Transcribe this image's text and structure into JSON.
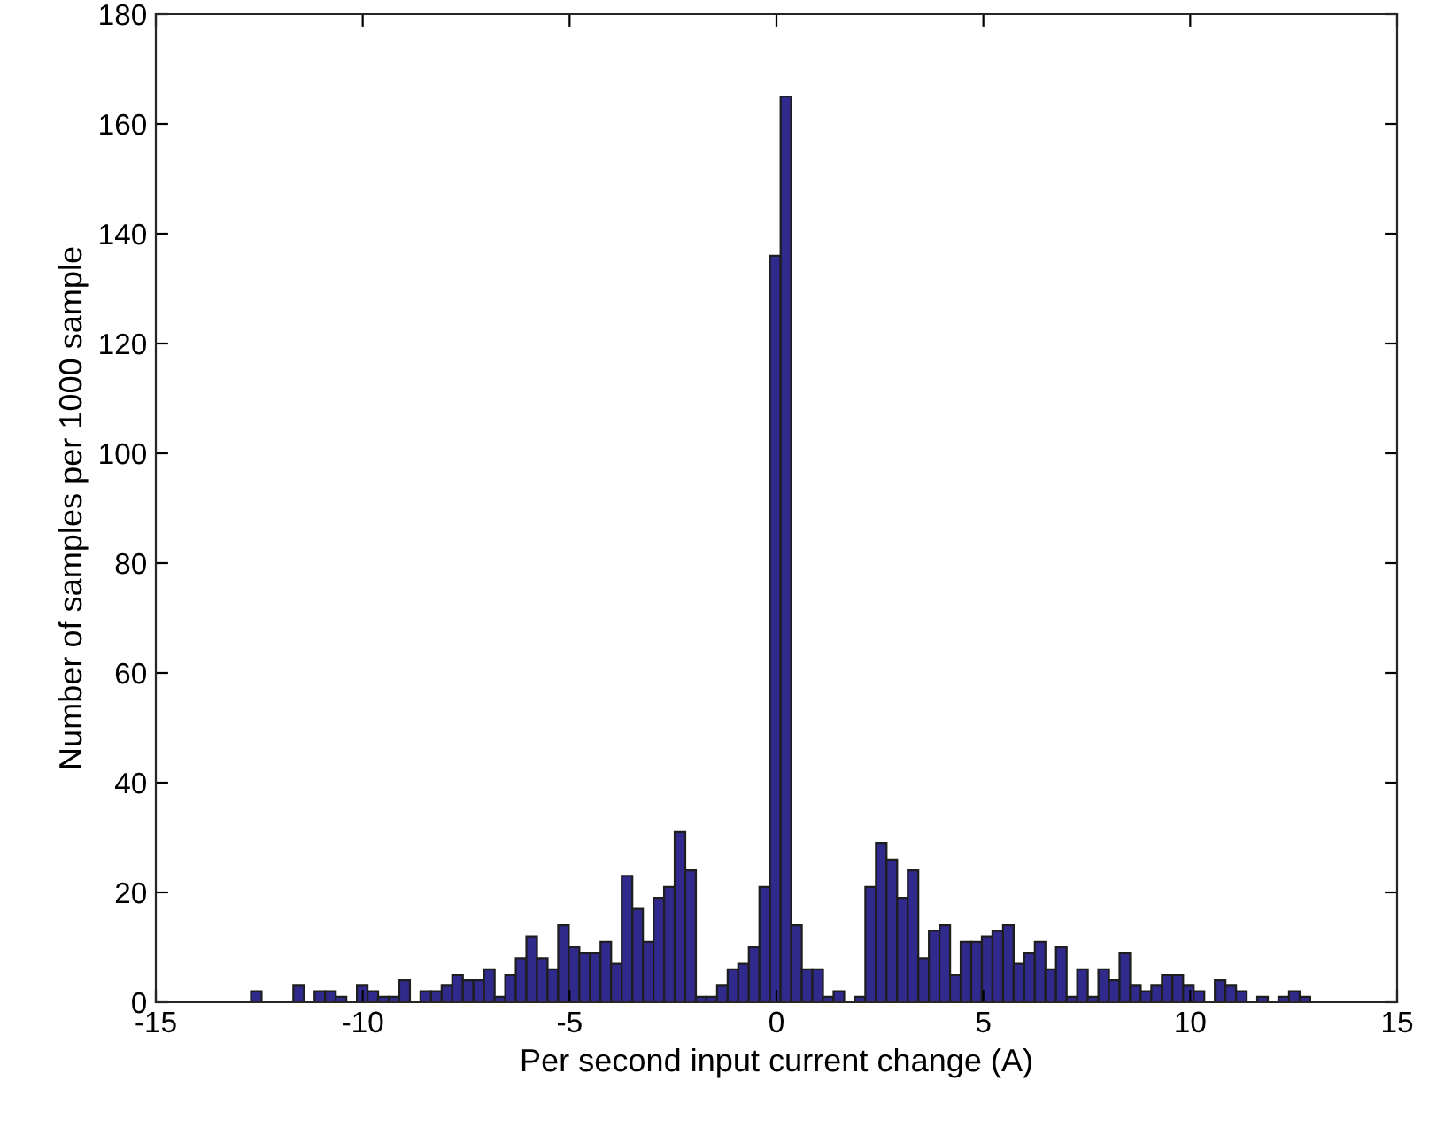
{
  "chart_data": {
    "type": "histogram",
    "xlabel": "Per second input current change (A)",
    "ylabel": "Number of samples per 1000 sample",
    "bins": [
      -12.7,
      -12.444,
      -12.188,
      -11.932,
      -11.676,
      -11.42,
      -11.164,
      -10.908,
      -10.652,
      -10.396,
      -10.14,
      -9.884,
      -9.628,
      -9.372,
      -9.116,
      -8.86,
      -8.604,
      -8.348,
      -8.092,
      -7.836,
      -7.58,
      -7.324,
      -7.068,
      -6.812,
      -6.556,
      -6.3,
      -6.044,
      -5.788,
      -5.532,
      -5.276,
      -5.02,
      -4.764,
      -4.508,
      -4.252,
      -3.996,
      -3.74,
      -3.484,
      -3.228,
      -2.972,
      -2.716,
      -2.46,
      -2.204,
      -1.948,
      -1.692,
      -1.436,
      -1.18,
      -0.924,
      -0.668,
      -0.412,
      -0.156,
      0.1,
      0.356,
      0.612,
      0.868,
      1.124,
      1.38,
      1.636,
      1.892,
      2.148,
      2.404,
      2.66,
      2.916,
      3.172,
      3.428,
      3.684,
      3.94,
      4.196,
      4.452,
      4.708,
      4.964,
      5.22,
      5.476,
      5.732,
      5.988,
      6.244,
      6.5,
      6.756,
      7.012,
      7.268,
      7.524,
      7.78,
      8.036,
      8.292,
      8.548,
      8.804,
      9.06,
      9.316,
      9.572,
      9.828,
      10.084,
      10.34,
      10.596,
      10.852,
      11.108,
      11.364,
      11.62,
      11.876,
      12.132,
      12.388,
      12.644,
      12.9
    ],
    "values": [
      2,
      0,
      0,
      0,
      3,
      0,
      2,
      2,
      1,
      0,
      3,
      2,
      1,
      1,
      4,
      0,
      2,
      2,
      3,
      5,
      4,
      4,
      6,
      1,
      5,
      8,
      12,
      8,
      6,
      14,
      10,
      9,
      9,
      11,
      7,
      23,
      17,
      11,
      19,
      21,
      31,
      24,
      1,
      1,
      3,
      6,
      7,
      10,
      21,
      136,
      165,
      14,
      6,
      6,
      1,
      2,
      0,
      1,
      21,
      29,
      26,
      19,
      24,
      8,
      13,
      14,
      5,
      11,
      11,
      12,
      13,
      14,
      7,
      9,
      11,
      6,
      10,
      1,
      6,
      1,
      6,
      4,
      9,
      3,
      2,
      3,
      5,
      5,
      3,
      2,
      0,
      4,
      3,
      2,
      0,
      1,
      0,
      1,
      2,
      1
    ],
    "color": "#302a8c",
    "xlim": [
      -15,
      15
    ],
    "xticks": [
      -15,
      -10,
      -5,
      0,
      5,
      10,
      15
    ],
    "ylim": [
      0,
      180
    ],
    "yticks": [
      0,
      20,
      40,
      60,
      80,
      100,
      120,
      140,
      160,
      180
    ],
    "grid": false,
    "legend": false
  }
}
